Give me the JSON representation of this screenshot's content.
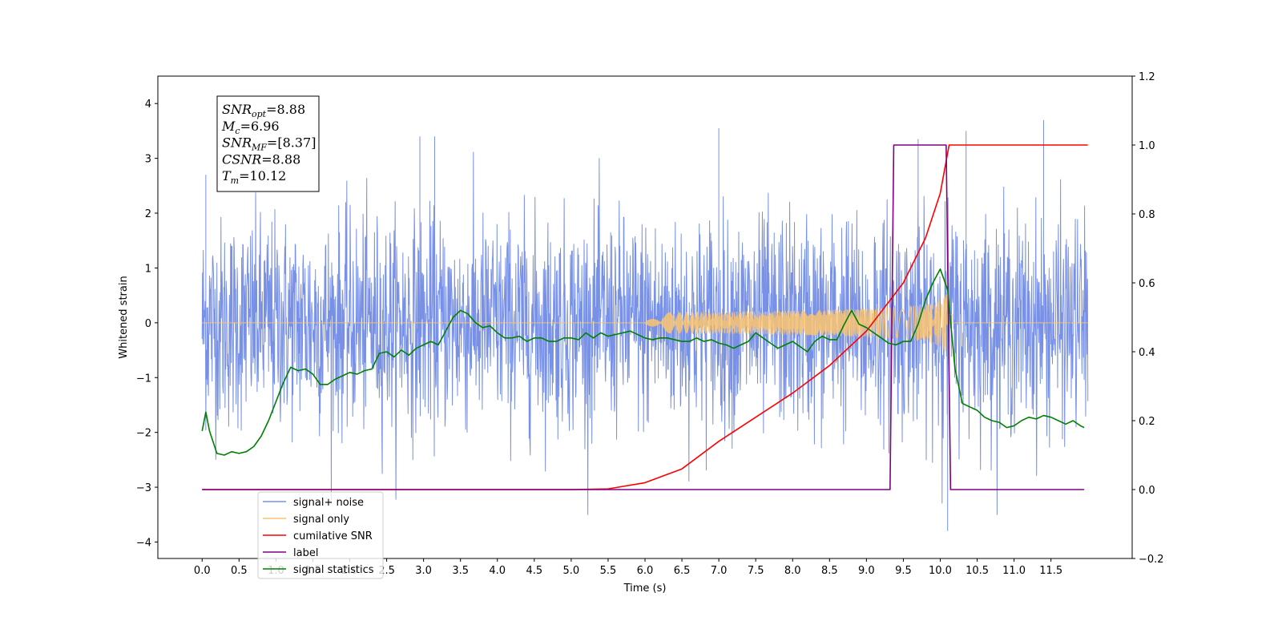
{
  "chart_data": {
    "type": "line",
    "title": "",
    "xlabel": "Time (s)",
    "ylabel": "Whitened strain",
    "y2label": "",
    "xlim": [
      -0.6,
      12.6
    ],
    "ylim": [
      -4.3,
      4.5
    ],
    "y2lim": [
      -0.2,
      1.2
    ],
    "x_ticks": [
      "0.0",
      "0.5",
      "1.0",
      "1.5",
      "2.0",
      "2.5",
      "3.0",
      "3.5",
      "4.0",
      "4.5",
      "5.0",
      "5.5",
      "6.0",
      "6.5",
      "7.0",
      "7.5",
      "8.0",
      "8.5",
      "9.0",
      "9.5",
      "10.0",
      "10.5",
      "11.0",
      "11.5"
    ],
    "y_ticks": [
      "4",
      "3",
      "2",
      "1",
      "0",
      "−1",
      "−2",
      "−3",
      "−4"
    ],
    "y2_ticks": [
      "1.2",
      "1.0",
      "0.8",
      "0.6",
      "0.4",
      "0.2",
      "0.0",
      "−0.2"
    ],
    "grid": false,
    "legend_position": "lower-left",
    "series": [
      {
        "name": "signal+ noise",
        "axis": "left",
        "color": "#7891e6",
        "x_range": [
          0,
          12
        ],
        "noise_sigma": 0.95,
        "peaks_x": [
          0.05,
          2.95,
          3.15,
          7.0,
          9.7,
          10.1,
          10.35,
          11.4
        ],
        "peaks_y": [
          2.7,
          3.4,
          3.4,
          3.55,
          3.35,
          -3.8,
          3.5,
          3.7
        ]
      },
      {
        "name": "signal only",
        "axis": "left",
        "color": "#fbc470",
        "chirp_start": 6.0,
        "chirp_end": 10.12,
        "max_amplitude": 0.6
      },
      {
        "name": "cumilative SNR",
        "axis": "right",
        "color": "#ff0000",
        "x": [
          0,
          5.0,
          5.5,
          6.0,
          6.5,
          7.0,
          7.5,
          8.0,
          8.5,
          9.0,
          9.5,
          9.8,
          10.0,
          10.12,
          10.2,
          12
        ],
        "y": [
          0,
          0,
          0.002,
          0.02,
          0.06,
          0.14,
          0.21,
          0.28,
          0.36,
          0.46,
          0.6,
          0.73,
          0.86,
          1.0,
          1.0,
          1.0
        ]
      },
      {
        "name": "label",
        "axis": "right",
        "color": "#800080",
        "x": [
          0,
          9.32,
          9.37,
          10.08,
          10.14,
          11.95
        ],
        "y": [
          0,
          0,
          1,
          1,
          0,
          0
        ]
      },
      {
        "name": "signal statistics",
        "axis": "right",
        "color": "#008000",
        "x": [
          0,
          0.05,
          0.1,
          0.2,
          0.3,
          0.4,
          0.5,
          0.6,
          0.7,
          0.8,
          0.9,
          1.0,
          1.1,
          1.2,
          1.3,
          1.4,
          1.5,
          1.6,
          1.7,
          1.8,
          1.9,
          2.0,
          2.1,
          2.2,
          2.3,
          2.4,
          2.5,
          2.6,
          2.7,
          2.8,
          2.9,
          3.0,
          3.1,
          3.2,
          3.3,
          3.4,
          3.5,
          3.6,
          3.7,
          3.8,
          3.9,
          4.0,
          4.1,
          4.2,
          4.3,
          4.4,
          4.5,
          4.6,
          4.7,
          4.8,
          4.9,
          5.0,
          5.1,
          5.2,
          5.3,
          5.4,
          5.5,
          5.6,
          5.7,
          5.8,
          5.9,
          6.0,
          6.1,
          6.2,
          6.3,
          6.4,
          6.5,
          6.6,
          6.7,
          6.8,
          6.9,
          7.0,
          7.1,
          7.2,
          7.3,
          7.4,
          7.5,
          7.6,
          7.7,
          7.8,
          7.9,
          8.0,
          8.1,
          8.2,
          8.3,
          8.4,
          8.5,
          8.6,
          8.7,
          8.8,
          8.9,
          9.0,
          9.1,
          9.2,
          9.3,
          9.4,
          9.5,
          9.6,
          9.7,
          9.8,
          9.9,
          10.0,
          10.1,
          10.2,
          10.3,
          10.4,
          10.5,
          10.6,
          10.7,
          10.8,
          10.9,
          11.0,
          11.1,
          11.2,
          11.3,
          11.4,
          11.5,
          11.6,
          11.7,
          11.8,
          11.9,
          11.95
        ],
        "y": [
          0.17,
          0.225,
          0.17,
          0.105,
          0.1,
          0.11,
          0.105,
          0.11,
          0.125,
          0.155,
          0.2,
          0.255,
          0.31,
          0.355,
          0.345,
          0.35,
          0.335,
          0.305,
          0.305,
          0.32,
          0.33,
          0.34,
          0.335,
          0.345,
          0.35,
          0.395,
          0.4,
          0.385,
          0.405,
          0.39,
          0.41,
          0.42,
          0.43,
          0.42,
          0.46,
          0.5,
          0.52,
          0.51,
          0.485,
          0.47,
          0.475,
          0.455,
          0.44,
          0.44,
          0.445,
          0.43,
          0.44,
          0.44,
          0.43,
          0.43,
          0.44,
          0.44,
          0.435,
          0.455,
          0.44,
          0.455,
          0.445,
          0.45,
          0.455,
          0.46,
          0.45,
          0.44,
          0.435,
          0.44,
          0.44,
          0.435,
          0.43,
          0.43,
          0.44,
          0.43,
          0.435,
          0.425,
          0.42,
          0.41,
          0.42,
          0.43,
          0.455,
          0.44,
          0.425,
          0.41,
          0.42,
          0.43,
          0.415,
          0.4,
          0.43,
          0.445,
          0.435,
          0.435,
          0.48,
          0.52,
          0.48,
          0.47,
          0.455,
          0.44,
          0.425,
          0.42,
          0.43,
          0.43,
          0.48,
          0.55,
          0.6,
          0.64,
          0.58,
          0.35,
          0.25,
          0.24,
          0.23,
          0.21,
          0.2,
          0.195,
          0.18,
          0.185,
          0.2,
          0.21,
          0.205,
          0.215,
          0.21,
          0.2,
          0.19,
          0.2,
          0.185,
          0.18
        ]
      }
    ],
    "annotation": {
      "lines": [
        {
          "sym": "SNR",
          "sub": "opt",
          "val": "=8.88"
        },
        {
          "sym": "M",
          "sub": "c",
          "val": "=6.96"
        },
        {
          "sym": "SNR",
          "sub": "MF",
          "val": "=[8.37]"
        },
        {
          "sym": "CSNR",
          "sub": "",
          "val": "=8.88"
        },
        {
          "sym": "T",
          "sub": "m",
          "val": "=10.12"
        }
      ]
    },
    "legend": [
      {
        "label": "signal+ noise",
        "color": "#7891e6"
      },
      {
        "label": "signal only",
        "color": "#fbc470"
      },
      {
        "label": "cumilative SNR",
        "color": "#ff0000"
      },
      {
        "label": "label",
        "color": "#800080"
      },
      {
        "label": "signal statistics",
        "color": "#008000"
      }
    ]
  }
}
